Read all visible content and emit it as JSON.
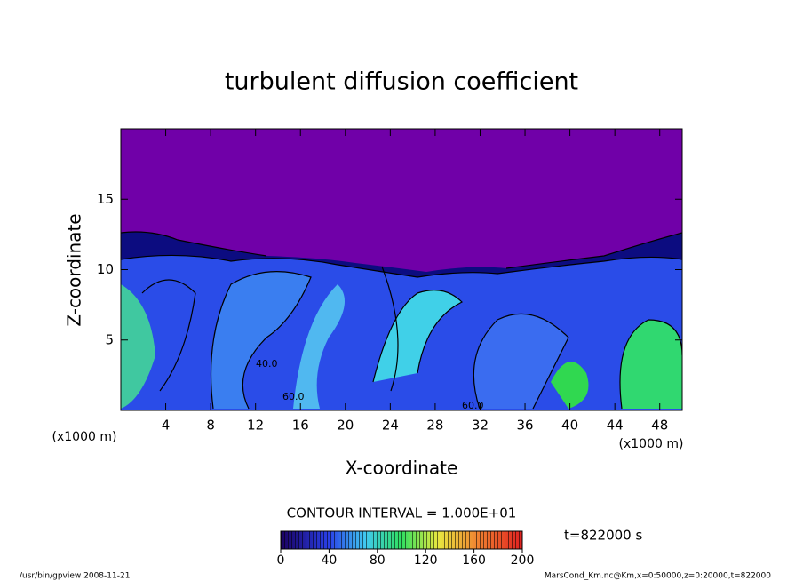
{
  "chart_data": {
    "type": "contour",
    "title": "turbulent diffusion coefficient",
    "xlabel": "X-coordinate",
    "ylabel": "Z-coordinate",
    "x_units": [
      "(x1000 m)",
      "(x1000 m)"
    ],
    "xlim": [
      0,
      50
    ],
    "xticks": [
      4,
      8,
      12,
      16,
      20,
      24,
      28,
      32,
      36,
      40,
      44,
      48
    ],
    "ylim": [
      0,
      20
    ],
    "yticks": [
      5,
      10,
      15
    ],
    "contour_labels": [
      "40.0",
      "60.0",
      "60.0"
    ],
    "contour_interval": "CONTOUR INTERVAL = 1.000E+01",
    "colorbar": {
      "lim": [
        0,
        200
      ],
      "ticks": [
        0,
        40,
        80,
        120,
        160,
        200
      ]
    },
    "time": "t=822000 s",
    "footer_left": "/usr/bin/gpview   2008-11-21",
    "footer_right": "MarsCond_Km.nc@Km,x=0:50000,z=0:20000,t=822000"
  }
}
